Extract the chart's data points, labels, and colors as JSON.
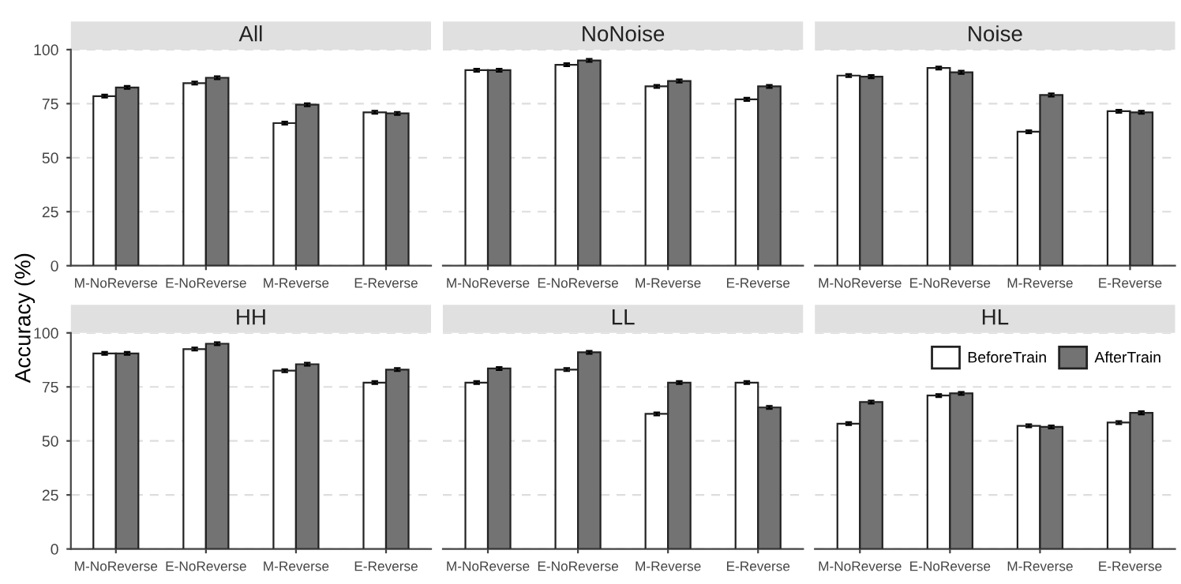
{
  "chart_data": [
    {
      "type": "bar",
      "title": "All",
      "categories": [
        "M-NoReverse",
        "E-NoReverse",
        "M-Reverse",
        "E-Reverse"
      ],
      "ylim": [
        0,
        100
      ],
      "yticks": [
        0,
        25,
        50,
        75,
        100
      ],
      "grid": "y",
      "legend": false,
      "series": [
        {
          "color": "#ffffff",
          "values": [
            78.5,
            84.5,
            66,
            71
          ],
          "errors": [
            0.7,
            0.7,
            0.7,
            0.7
          ]
        },
        {
          "color": "#737373",
          "values": [
            82.5,
            87,
            74.5,
            70.5
          ],
          "errors": [
            0.7,
            0.7,
            0.7,
            0.7
          ]
        }
      ]
    },
    {
      "type": "bar",
      "title": "NoNoise",
      "categories": [
        "M-NoReverse",
        "E-NoReverse",
        "M-Reverse",
        "E-Reverse"
      ],
      "ylim": [
        0,
        100
      ],
      "yticks": [
        0,
        25,
        50,
        75,
        100
      ],
      "grid": "y",
      "legend": false,
      "tick_labels": "x",
      "series": [
        {
          "color": "#ffffff",
          "values": [
            90.5,
            93,
            83,
            77
          ],
          "errors": [
            0.7,
            0.7,
            0.7,
            0.7
          ]
        },
        {
          "color": "#737373",
          "values": [
            90.5,
            95,
            85.5,
            83
          ],
          "errors": [
            0.7,
            0.7,
            0.7,
            0.7
          ]
        }
      ]
    },
    {
      "type": "bar",
      "title": "Noise",
      "categories": [
        "M-NoReverse",
        "E-NoReverse",
        "M-Reverse",
        "E-Reverse"
      ],
      "ylim": [
        0,
        100
      ],
      "yticks": [
        0,
        25,
        50,
        75,
        100
      ],
      "grid": "y",
      "legend": false,
      "tick_labels": "x",
      "series": [
        {
          "color": "#ffffff",
          "values": [
            88,
            91.5,
            62,
            71.5
          ],
          "errors": [
            0.7,
            0.7,
            0.7,
            0.7
          ]
        },
        {
          "color": "#737373",
          "values": [
            87.5,
            89.5,
            79,
            71
          ],
          "errors": [
            0.7,
            0.7,
            0.7,
            0.7
          ]
        }
      ]
    },
    {
      "type": "bar",
      "title": "HH",
      "ylabel": "Accuracy (%)",
      "categories": [
        "M-NoReverse",
        "E-NoReverse",
        "M-Reverse",
        "E-Reverse"
      ],
      "ylim": [
        0,
        100
      ],
      "yticks": [
        0,
        25,
        50,
        75,
        100
      ],
      "grid": "y",
      "legend": false,
      "series": [
        {
          "color": "#ffffff",
          "values": [
            90.5,
            92.5,
            82.5,
            77
          ],
          "errors": [
            0.7,
            0.7,
            0.7,
            0.7
          ]
        },
        {
          "color": "#737373",
          "values": [
            90.5,
            95,
            85.5,
            83
          ],
          "errors": [
            0.7,
            0.7,
            0.7,
            0.7
          ]
        }
      ]
    },
    {
      "type": "bar",
      "title": "LL",
      "categories": [
        "M-NoReverse",
        "E-NoReverse",
        "M-Reverse",
        "E-Reverse"
      ],
      "ylim": [
        0,
        100
      ],
      "yticks": [
        0,
        25,
        50,
        75,
        100
      ],
      "grid": "y",
      "legend": false,
      "tick_labels": "x",
      "series": [
        {
          "color": "#ffffff",
          "values": [
            77,
            83,
            62.5,
            77
          ],
          "errors": [
            0.7,
            0.7,
            0.7,
            0.7
          ]
        },
        {
          "color": "#737373",
          "values": [
            83.5,
            91,
            77,
            65.5
          ],
          "errors": [
            0.7,
            0.7,
            0.7,
            0.7
          ]
        }
      ]
    },
    {
      "type": "bar",
      "title": "HL",
      "categories": [
        "M-NoReverse",
        "E-NoReverse",
        "M-Reverse",
        "E-Reverse"
      ],
      "ylim": [
        0,
        100
      ],
      "yticks": [
        0,
        25,
        50,
        75,
        100
      ],
      "grid": "y",
      "legend": "top right",
      "tick_labels": "x",
      "series": [
        {
          "name": "BeforeTrain",
          "color": "#ffffff",
          "values": [
            58,
            71,
            57,
            58.5
          ],
          "errors": [
            0.7,
            0.7,
            0.7,
            0.7
          ]
        },
        {
          "name": "AfterTrain",
          "color": "#737373",
          "values": [
            68,
            72,
            56.5,
            63
          ],
          "errors": [
            0.7,
            0.7,
            0.7,
            0.7
          ]
        }
      ]
    }
  ]
}
